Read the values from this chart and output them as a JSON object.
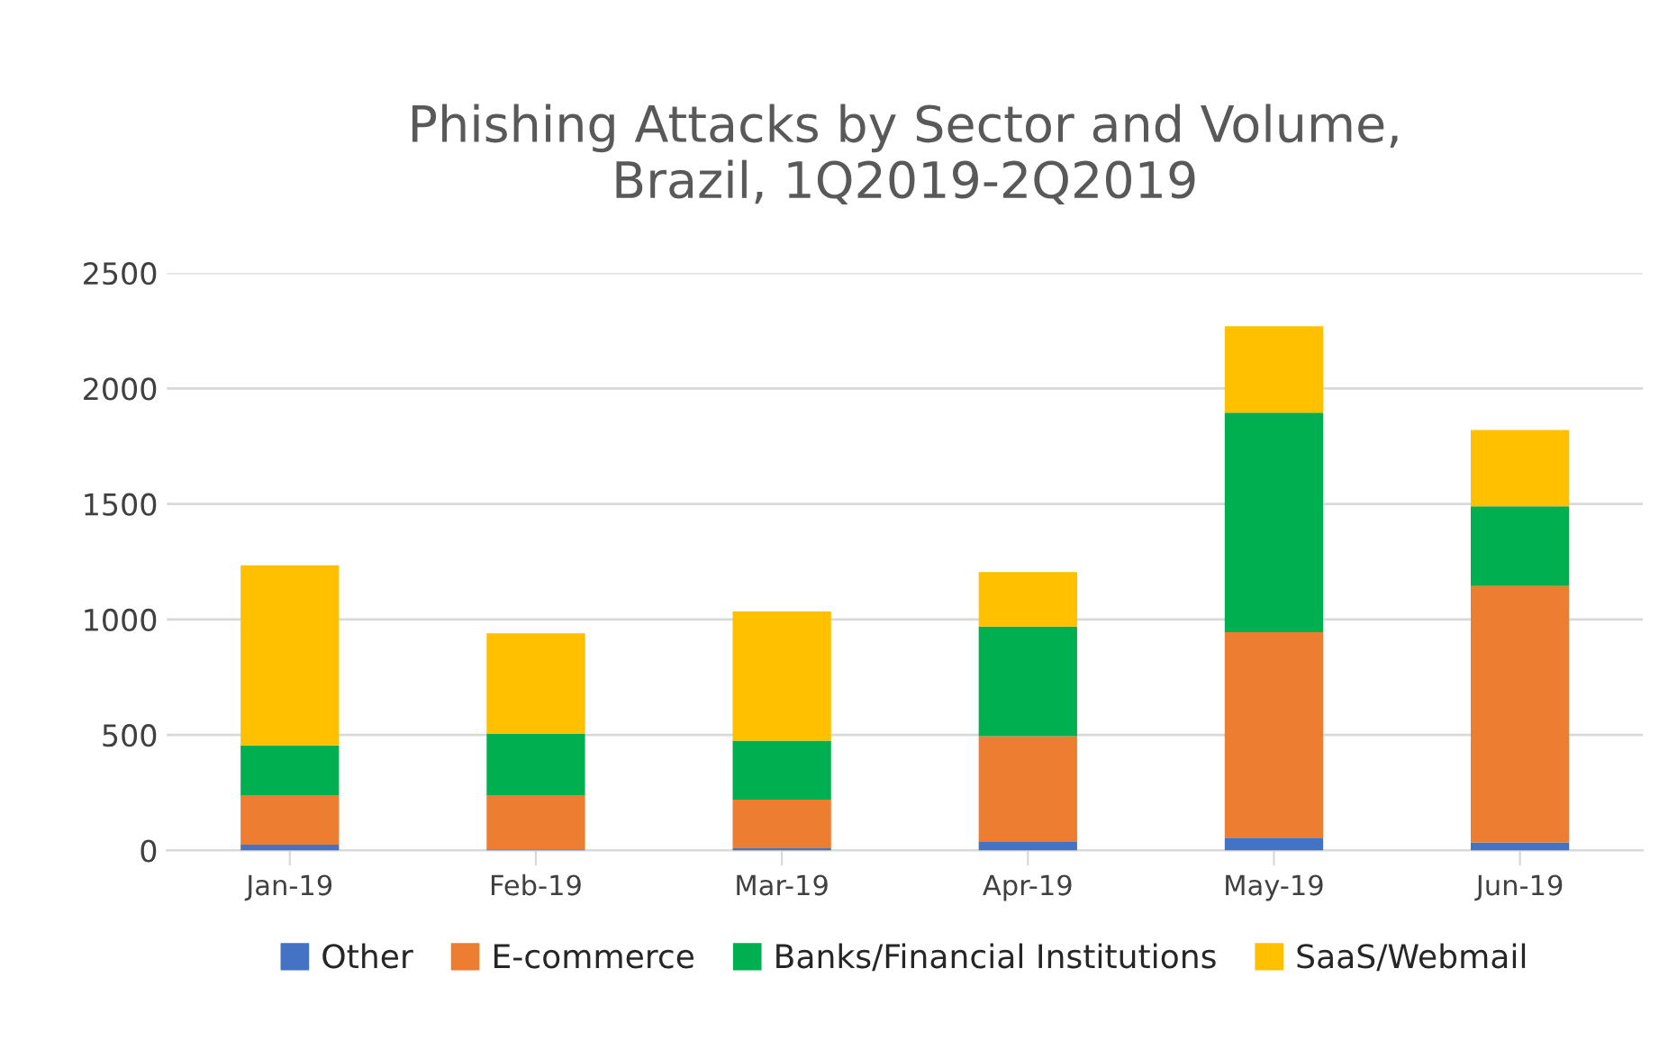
{
  "chart_data": {
    "type": "bar",
    "title": "Phishing Attacks by Sector and Volume,\nBrazil, 1Q2019-2Q2019",
    "categories": [
      "Jan-19",
      "Feb-19",
      "Mar-19",
      "Apr-19",
      "May-19",
      "Jun-19"
    ],
    "stacked": true,
    "series": [
      {
        "name": "Other",
        "color": "#4472c4",
        "values": [
          25,
          5,
          10,
          40,
          55,
          35
        ]
      },
      {
        "name": "E-commerce",
        "color": "#ed7d31",
        "values": [
          215,
          235,
          210,
          455,
          890,
          1110
        ]
      },
      {
        "name": "Banks/Financial Institutions",
        "color": "#00b050",
        "values": [
          215,
          265,
          255,
          475,
          950,
          345
        ]
      },
      {
        "name": "SaaS/Webmail",
        "color": "#ffc000",
        "values": [
          780,
          435,
          560,
          235,
          375,
          330
        ]
      }
    ],
    "ylim": [
      0,
      2500
    ],
    "yticks": [
      0,
      500,
      1000,
      1500,
      2000,
      2500
    ],
    "grid": "y",
    "legend": "bottom"
  }
}
